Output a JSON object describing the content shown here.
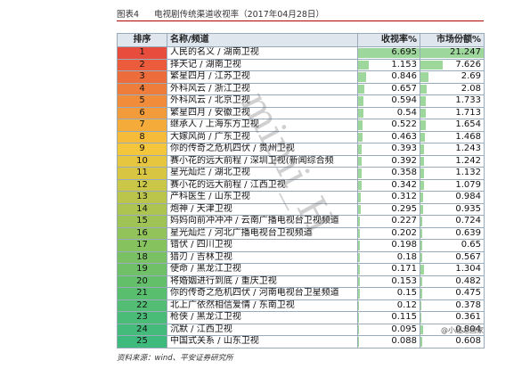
{
  "caption": {
    "label": "图表4",
    "title": "电视剧传统渠道收视率（2017年04月28日）"
  },
  "headers": {
    "rank": "排序",
    "name": "名称/频道",
    "rating": "收视率%",
    "share": "市场份额%"
  },
  "colors": {
    "rank_gradient": [
      "#e84c3d",
      "#ea5c3c",
      "#ec6c3c",
      "#ee7c3b",
      "#f08c3a",
      "#f29b3a",
      "#f4ab39",
      "#f6bb39",
      "#f4c63b",
      "#e6c63f",
      "#d8c643",
      "#c9c648",
      "#bbc54c",
      "#adc550",
      "#9fc455",
      "#92c35a",
      "#86c25e",
      "#7ac163",
      "#6fc067",
      "#64bf6b",
      "#5abe6f",
      "#52bd73",
      "#4abc77",
      "#44bb7a",
      "#3fba7d"
    ],
    "bar": "#7cc97a",
    "header_bg": "#dfe6ee"
  },
  "max": {
    "rating": 6.695,
    "share": 21.247
  },
  "rows": [
    {
      "rank": "1",
      "name": "人民的名义 / 湖南卫视",
      "rating": "6.695",
      "share": "21.247"
    },
    {
      "rank": "2",
      "name": "择天记 / 湖南卫视",
      "rating": "1.153",
      "share": "7.626"
    },
    {
      "rank": "3",
      "name": "繁星四月 / 江苏卫视",
      "rating": "0.846",
      "share": "2.69"
    },
    {
      "rank": "4",
      "name": "外科风云 / 浙江卫视",
      "rating": "0.657",
      "share": "2.08"
    },
    {
      "rank": "5",
      "name": "外科风云 / 北京卫视",
      "rating": "0.594",
      "share": "1.733"
    },
    {
      "rank": "6",
      "name": "繁星四月 / 安徽卫视",
      "rating": "0.54",
      "share": "1.713"
    },
    {
      "rank": "7",
      "name": "继承人 / 上海东方卫视",
      "rating": "0.522",
      "share": "1.654"
    },
    {
      "rank": "8",
      "name": "大嫁风尚 / 广东卫视",
      "rating": "0.463",
      "share": "1.468"
    },
    {
      "rank": "9",
      "name": "你的传奇之危机四伏 / 贵州卫视",
      "rating": "0.393",
      "share": "1.243"
    },
    {
      "rank": "10",
      "name": "赛小花的远大前程 / 深圳卫视(新闻综合频",
      "rating": "0.392",
      "share": "1.242"
    },
    {
      "rank": "11",
      "name": "星光灿烂 / 湖北卫视",
      "rating": "0.358",
      "share": "1.132"
    },
    {
      "rank": "12",
      "name": "赛小花的远大前程 / 江西卫视",
      "rating": "0.342",
      "share": "1.079"
    },
    {
      "rank": "13",
      "name": "产科医生 / 山东卫视",
      "rating": "0.312",
      "share": "0.984"
    },
    {
      "rank": "14",
      "name": "炮神 / 天津卫视",
      "rating": "0.295",
      "share": "0.935"
    },
    {
      "rank": "15",
      "name": "妈妈向前冲冲冲 / 云南广播电视台卫视频道",
      "rating": "0.227",
      "share": "0.724"
    },
    {
      "rank": "16",
      "name": "星光灿烂 / 河北广播电视台卫视频道",
      "rating": "0.202",
      "share": "0.639"
    },
    {
      "rank": "17",
      "name": "错伏 / 四川卫视",
      "rating": "0.198",
      "share": "0.65"
    },
    {
      "rank": "18",
      "name": "猎刃 / 吉林卫视",
      "rating": "0.18",
      "share": "0.567"
    },
    {
      "rank": "19",
      "name": "使命 / 黑龙江卫视",
      "rating": "0.171",
      "share": "1.304"
    },
    {
      "rank": "20",
      "name": "将婚姻进行到底 / 重庆卫视",
      "rating": "0.153",
      "share": "0.482"
    },
    {
      "rank": "21",
      "name": "你的传奇之危机四伏 / 河南电视台卫星频道",
      "rating": "0.15",
      "share": "0.475"
    },
    {
      "rank": "22",
      "name": "北上广依然相信爱情 / 东南卫视",
      "rating": "0.12",
      "share": "0.378"
    },
    {
      "rank": "23",
      "name": "枪侠 / 黑龙江卫视",
      "rating": "0.115",
      "share": "0.361"
    },
    {
      "rank": "24",
      "name": "沉默 / 江西卫视",
      "rating": "0.095",
      "share": "0.804"
    },
    {
      "rank": "25",
      "name": "中国式关系 / 山东卫视",
      "rating": "0.088",
      "share": "0.608"
    }
  ],
  "source": "资料来源：wind、平安证券研究所",
  "watermark": "mimi_H",
  "corner_logo": "@小超之国家"
}
